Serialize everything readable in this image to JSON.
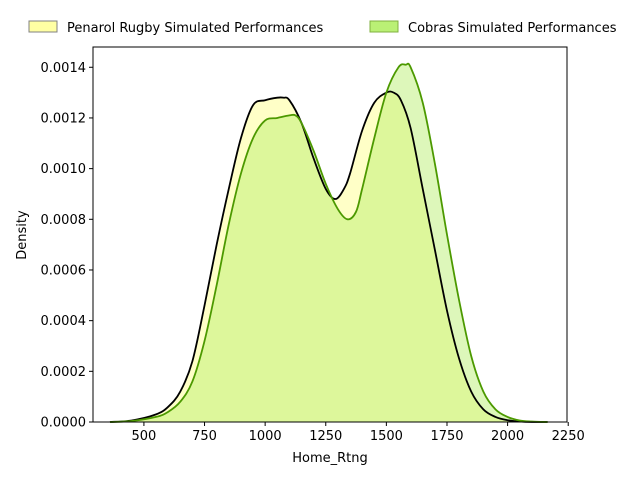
{
  "chart_data": {
    "type": "area",
    "title": "",
    "xlabel": "Home_Rtng",
    "ylabel": "Density",
    "xlim": [
      290,
      2245
    ],
    "ylim": [
      0,
      0.00148
    ],
    "x_ticks": [
      500,
      750,
      1000,
      1250,
      1500,
      1750,
      2000,
      2250
    ],
    "y_ticks": [
      0.0,
      0.0002,
      0.0004,
      0.0006,
      0.0008,
      0.001,
      0.0012,
      0.0014
    ],
    "x_tick_labels": [
      "500",
      "750",
      "1000",
      "1250",
      "1500",
      "1750",
      "2000",
      "2250"
    ],
    "y_tick_labels": [
      "0.0000",
      "0.0002",
      "0.0004",
      "0.0006",
      "0.0008",
      "0.0010",
      "0.0012",
      "0.0014"
    ],
    "grid": false,
    "legend_position": "top, above plot",
    "series": [
      {
        "name": "Penarol Rugby Simulated Performances",
        "fill_color": "#ffff99",
        "line_color": "#000000",
        "x": [
          360,
          450,
          550,
          600,
          650,
          700,
          750,
          800,
          850,
          900,
          950,
          1000,
          1050,
          1075,
          1100,
          1150,
          1200,
          1250,
          1290,
          1325,
          1350,
          1400,
          1450,
          1500,
          1530,
          1560,
          1600,
          1650,
          1700,
          1750,
          1800,
          1850,
          1900,
          1950,
          2000,
          2050,
          2100,
          2165
        ],
        "y": [
          0.0,
          6e-06,
          3e-05,
          6e-05,
          0.00012,
          0.00024,
          0.00046,
          0.0007,
          0.00092,
          0.00112,
          0.00125,
          0.00127,
          0.00128,
          0.00128,
          0.00127,
          0.00118,
          0.00104,
          0.00092,
          0.00088,
          0.00092,
          0.00098,
          0.00115,
          0.00126,
          0.0013,
          0.0013,
          0.00127,
          0.00116,
          0.00092,
          0.00068,
          0.00044,
          0.00025,
          0.00012,
          5e-05,
          2e-05,
          7e-06,
          2e-06,
          0.0,
          0.0
        ]
      },
      {
        "name": "Cobras Simulated Performances",
        "fill_color": "#b3ee66",
        "line_color": "#4c9900",
        "x": [
          360,
          450,
          550,
          600,
          650,
          700,
          750,
          800,
          850,
          900,
          950,
          1000,
          1050,
          1100,
          1125,
          1150,
          1200,
          1250,
          1300,
          1340,
          1375,
          1400,
          1450,
          1500,
          1550,
          1580,
          1600,
          1650,
          1700,
          1750,
          1800,
          1850,
          1900,
          1950,
          2000,
          2050,
          2100,
          2165
        ],
        "y": [
          0.0,
          4e-06,
          2e-05,
          4e-05,
          8e-05,
          0.00016,
          0.00032,
          0.00054,
          0.00078,
          0.00098,
          0.00112,
          0.00119,
          0.0012,
          0.00121,
          0.00121,
          0.00118,
          0.00107,
          0.00094,
          0.00084,
          0.0008,
          0.00083,
          0.00092,
          0.00112,
          0.0013,
          0.0014,
          0.00141,
          0.0014,
          0.00126,
          0.00102,
          0.00074,
          0.00048,
          0.00026,
          0.00012,
          5e-05,
          2e-05,
          6e-06,
          2e-06,
          0.0
        ]
      }
    ]
  }
}
